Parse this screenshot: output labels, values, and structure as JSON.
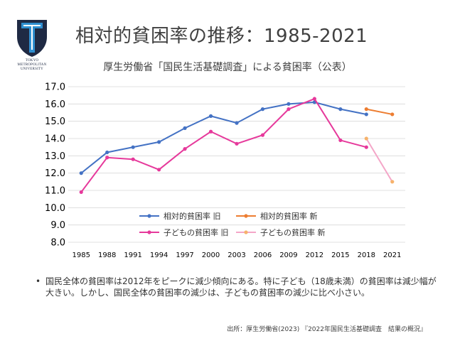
{
  "logo": {
    "lines": [
      "TOKYO",
      "METROPOLITAN",
      "UNIVERSITY"
    ],
    "colors": {
      "navy": "#1f2a44",
      "blue": "#2f8fd0"
    }
  },
  "header": {
    "title": "相対的貧困率の推移：1985-2021"
  },
  "notes": {
    "bullet_symbol": "•",
    "bullet": "国民全体の貧困率は2012年をピークに減少傾向にある。特に子ども（18歳未満）の貧困率は減少幅が大きい。しかし、国民全体の貧困率の減少は、子どもの貧困率の減少に比べ小さい。",
    "source": "出所：厚生労働省(2023) 『2022年国民生活基礎調査　結果の概況』"
  },
  "chart_data": {
    "type": "line",
    "title": "厚生労働省「国民生活基礎調査」による貧困率（公表）",
    "categories": [
      "1985",
      "1988",
      "1991",
      "1994",
      "1997",
      "2000",
      "2003",
      "2006",
      "2009",
      "2012",
      "2015",
      "2018",
      "2021"
    ],
    "ylim": [
      8.0,
      17.0
    ],
    "yticks": [
      "8.0",
      "9.0",
      "10.0",
      "11.0",
      "12.0",
      "13.0",
      "14.0",
      "15.0",
      "16.0",
      "17.0"
    ],
    "grid": true,
    "legend_position": "inside-bottom-center",
    "series": [
      {
        "name": "相対的貧困率 旧",
        "color": "#4472c4",
        "values": [
          12.0,
          13.2,
          13.5,
          13.8,
          14.6,
          15.3,
          14.9,
          15.7,
          16.0,
          16.1,
          15.7,
          15.4,
          null
        ]
      },
      {
        "name": "相対的貧困率 新",
        "color": "#ed7d31",
        "values": [
          null,
          null,
          null,
          null,
          null,
          null,
          null,
          null,
          null,
          null,
          null,
          15.7,
          15.4
        ]
      },
      {
        "name": "子どもの貧困率 旧",
        "color": "#e6399b",
        "values": [
          10.9,
          12.9,
          12.8,
          12.2,
          13.4,
          14.4,
          13.7,
          14.2,
          15.7,
          16.3,
          13.9,
          13.5,
          null
        ]
      },
      {
        "name": "子どもの貧困率 新",
        "color": "#f4a6c8",
        "marker_color": "#f6b26b",
        "values": [
          null,
          null,
          null,
          null,
          null,
          null,
          null,
          null,
          null,
          null,
          null,
          14.0,
          11.5
        ]
      }
    ]
  }
}
